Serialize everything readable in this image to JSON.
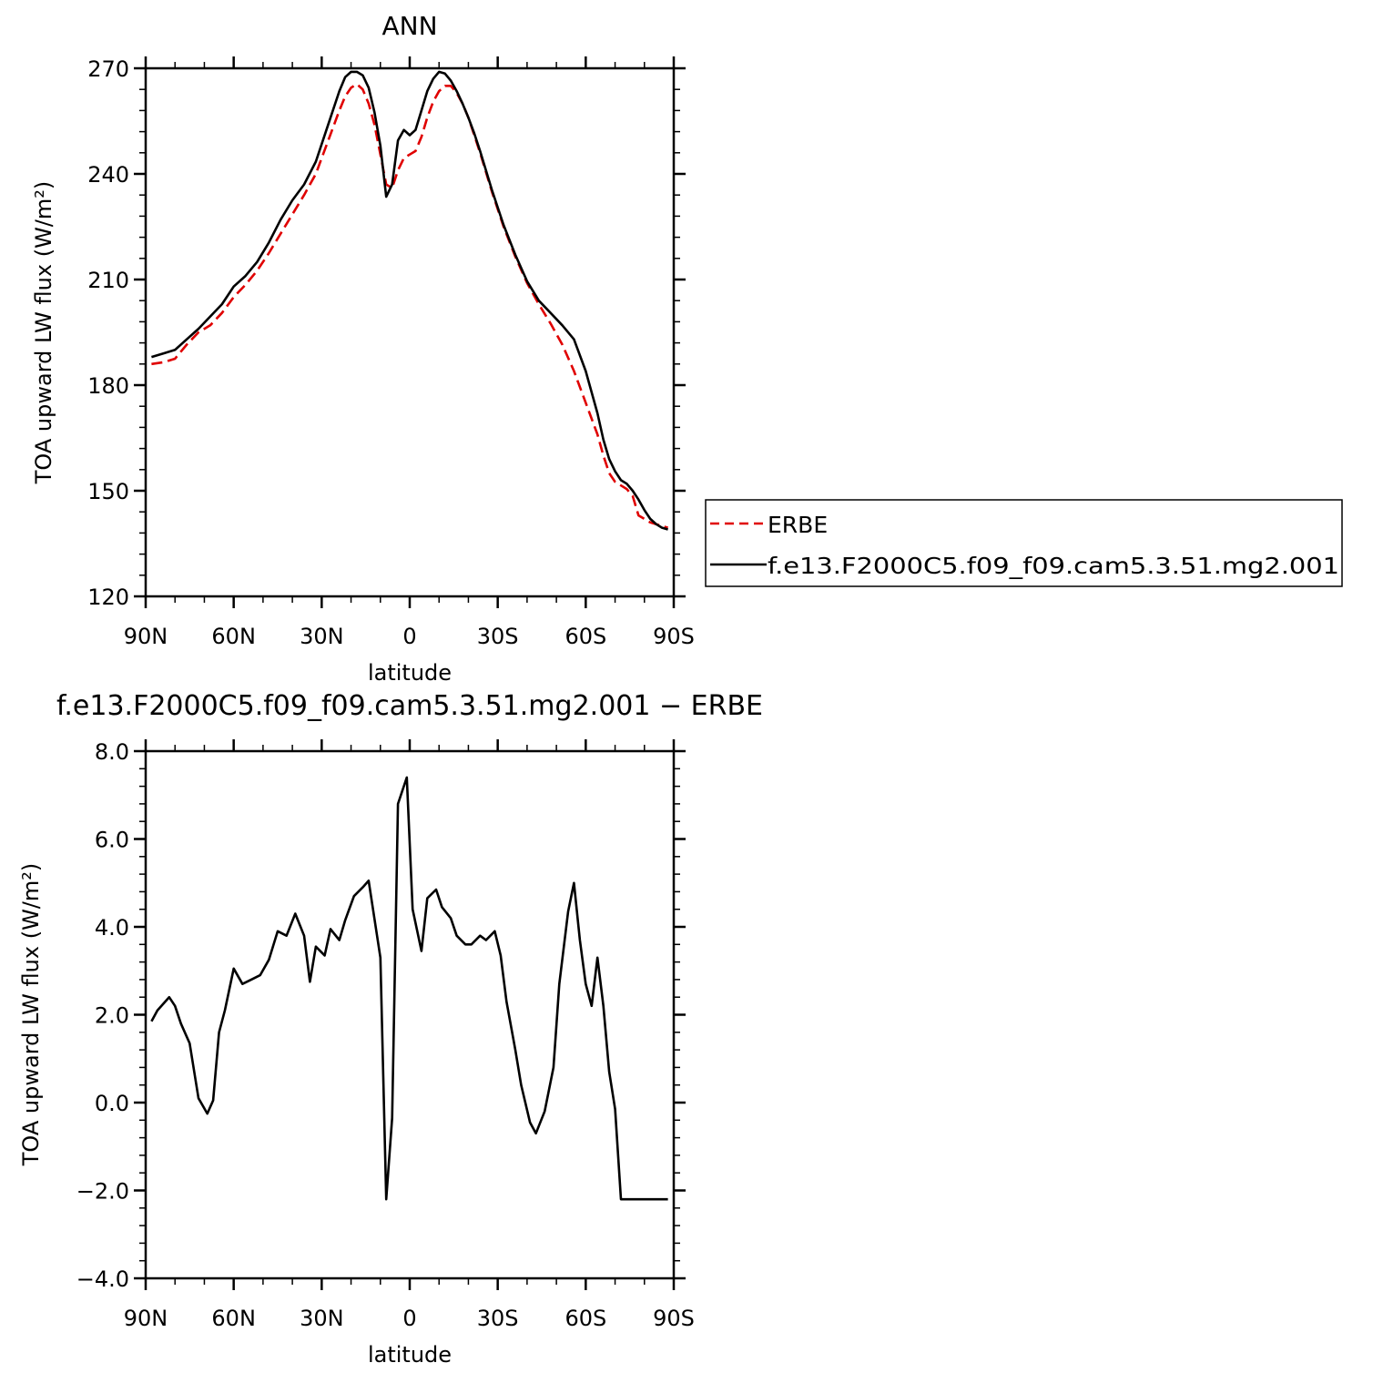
{
  "chart_data": [
    {
      "type": "line",
      "title": "ANN",
      "xlabel": "latitude",
      "ylabel": "TOA upward LW flux (W/m²)",
      "xlim": [
        90,
        -90
      ],
      "ylim": [
        120,
        270
      ],
      "yticks": [
        120,
        150,
        180,
        210,
        240,
        270
      ],
      "yticklabels": [
        "120",
        "150",
        "180",
        "210",
        "240",
        "270"
      ],
      "xticks": [
        90,
        60,
        30,
        0,
        -30,
        -60,
        -90
      ],
      "xticklabels": [
        "90N",
        "60N",
        "30N",
        "0",
        "30S",
        "60S",
        "90S"
      ],
      "legend": {
        "position": "right",
        "entries": [
          "ERBE",
          "f.e13.F2000C5.f09_f09.cam5.3.51.mg2.001"
        ]
      },
      "series": [
        {
          "name": "ERBE",
          "color": "#e00000",
          "dash": "dashed",
          "x": [
            88,
            84,
            80,
            76,
            72,
            68,
            64,
            60,
            56,
            52,
            48,
            44,
            40,
            36,
            32,
            28,
            24,
            22,
            20,
            18,
            16,
            14,
            12,
            10,
            8,
            6,
            4,
            2,
            0,
            -2,
            -4,
            -6,
            -8,
            -10,
            -12,
            -14,
            -16,
            -18,
            -20,
            -22,
            -24,
            -28,
            -32,
            -36,
            -40,
            -44,
            -48,
            -52,
            -56,
            -60,
            -64,
            -66,
            -68,
            -70,
            -72,
            -74,
            -76,
            -78,
            -80,
            -82,
            -84,
            -86,
            -88
          ],
          "y": [
            186.0,
            186.5,
            187.5,
            191.5,
            195.0,
            197.0,
            200.5,
            205.0,
            208.5,
            212.5,
            217.5,
            223.0,
            228.5,
            234.0,
            240.0,
            249.0,
            258.0,
            262.0,
            264.5,
            265.5,
            264.0,
            260.0,
            254.0,
            245.5,
            237.0,
            236.0,
            241.0,
            244.5,
            245.5,
            246.5,
            250.5,
            256.0,
            260.5,
            263.5,
            265.0,
            265.0,
            263.0,
            260.0,
            256.0,
            251.0,
            246.0,
            235.0,
            225.0,
            216.5,
            209.0,
            203.0,
            197.5,
            191.5,
            184.0,
            175.0,
            166.0,
            160.0,
            155.0,
            152.5,
            151.5,
            150.5,
            148.5,
            143.0,
            142.0,
            141.0,
            140.5,
            140.0,
            139.5
          ]
        },
        {
          "name": "f.e13.F2000C5.f09_f09.cam5.3.51.mg2.001",
          "color": "#000000",
          "dash": "solid",
          "x": [
            88,
            84,
            80,
            76,
            72,
            68,
            64,
            60,
            56,
            52,
            48,
            44,
            40,
            36,
            32,
            28,
            24,
            22,
            20,
            18,
            16,
            14,
            12,
            10,
            8,
            6,
            4,
            2,
            0,
            -2,
            -4,
            -6,
            -8,
            -10,
            -12,
            -14,
            -16,
            -18,
            -20,
            -22,
            -24,
            -28,
            -32,
            -36,
            -40,
            -44,
            -48,
            -52,
            -56,
            -60,
            -64,
            -66,
            -68,
            -70,
            -72,
            -74,
            -76,
            -78,
            -80,
            -82,
            -84,
            -86,
            -88
          ],
          "y": [
            188.0,
            189.0,
            190.0,
            193.0,
            196.0,
            199.5,
            203.0,
            208.0,
            211.0,
            215.0,
            220.5,
            227.0,
            232.5,
            237.0,
            243.5,
            253.5,
            263.5,
            267.5,
            269.0,
            269.0,
            268.0,
            264.5,
            257.5,
            248.0,
            233.5,
            237.0,
            249.5,
            252.5,
            251.0,
            252.5,
            258.0,
            263.5,
            267.0,
            269.0,
            268.5,
            266.5,
            263.5,
            260.0,
            256.0,
            251.5,
            246.5,
            235.5,
            225.5,
            217.0,
            209.5,
            204.0,
            200.5,
            197.0,
            193.0,
            184.0,
            172.0,
            164.5,
            159.0,
            155.5,
            153.0,
            152.0,
            150.0,
            147.5,
            144.5,
            142.0,
            140.5,
            139.5,
            139.0
          ]
        }
      ]
    },
    {
      "type": "line",
      "title": "f.e13.F2000C5.f09_f09.cam5.3.51.mg2.001 − ERBE",
      "xlabel": "latitude",
      "ylabel": "TOA upward LW flux (W/m²)",
      "xlim": [
        90,
        -90
      ],
      "ylim": [
        -4.0,
        8.0
      ],
      "yticks": [
        -4,
        -2,
        0,
        2,
        4,
        6,
        8
      ],
      "yticklabels": [
        "−4.0",
        "−2.0",
        "0.0",
        "2.0",
        "4.0",
        "6.0",
        "8.0"
      ],
      "xticks": [
        90,
        60,
        30,
        0,
        -30,
        -60,
        -90
      ],
      "xticklabels": [
        "90N",
        "60N",
        "30N",
        "0",
        "30S",
        "60S",
        "90S"
      ],
      "series": [
        {
          "color": "#000000",
          "dash": "solid",
          "x": [
            88,
            86,
            82,
            80,
            78,
            75,
            72,
            69,
            67,
            65,
            63,
            60,
            57,
            54,
            51,
            48,
            45,
            42,
            39,
            36,
            34,
            32,
            29,
            27,
            24,
            22,
            19,
            16,
            14,
            10,
            8,
            6,
            4,
            1,
            -1,
            -4,
            -6,
            -9,
            -11,
            -14,
            -16,
            -19,
            -21,
            -24,
            -26,
            -29,
            -31,
            -33,
            -36,
            -38,
            -41,
            -43,
            -46,
            -49,
            -51,
            -54,
            -56,
            -58,
            -60,
            -62,
            -64,
            -66,
            -68,
            -70,
            -72,
            -74,
            -76,
            -78,
            -80,
            -82,
            -84,
            -86,
            -88
          ],
          "y": [
            1.85,
            2.1,
            2.4,
            2.2,
            1.8,
            1.35,
            0.1,
            -0.25,
            0.05,
            1.6,
            2.1,
            3.05,
            2.7,
            2.8,
            2.9,
            3.25,
            3.9,
            3.8,
            4.3,
            3.8,
            2.75,
            3.55,
            3.35,
            3.95,
            3.7,
            4.15,
            4.7,
            4.9,
            5.05,
            3.3,
            -2.2,
            -0.35,
            6.8,
            7.4,
            4.4,
            3.45,
            4.65,
            4.85,
            4.45,
            4.2,
            3.8,
            3.6,
            3.6,
            3.8,
            3.7,
            3.9,
            3.35,
            2.3,
            1.2,
            0.4,
            -0.45,
            -0.7,
            -0.2,
            0.8,
            2.7,
            4.35,
            5.0,
            3.7,
            2.7,
            2.2,
            3.3,
            2.2,
            0.7,
            -0.15,
            -2.2,
            -2.2,
            -2.2,
            -2.2,
            -2.2,
            -2.2,
            -2.2,
            -2.2,
            -2.2
          ]
        }
      ]
    }
  ]
}
